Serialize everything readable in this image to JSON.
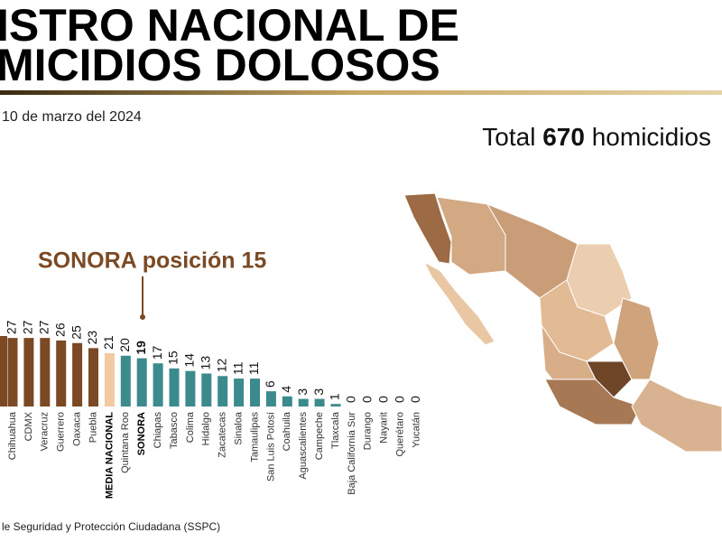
{
  "header": {
    "title_line1": "ISTRO NACIONAL DE",
    "title_line2": "MICIDIOS DOLOSOS",
    "date": "10 de marzo del 2024"
  },
  "total": {
    "prefix": "Total",
    "number": 670,
    "suffix": "homicidios"
  },
  "callout": "SONORA posición 15",
  "source": "le Seguridad y Protección Ciudadana (SSPC)",
  "chart_data": {
    "type": "bar",
    "categories": [
      "Chihuahua",
      "CDMX",
      "Veracruz",
      "Guerrero",
      "Oaxaca",
      "Puebla",
      "MEDIA NACIONAL",
      "Quintana Roo",
      "SONORA",
      "Chiapas",
      "Tabasco",
      "Colima",
      "Hidalgo",
      "Zacatecas",
      "Sinaloa",
      "Tamaulipas",
      "San Luis Potosí",
      "Coahuila",
      "Aguascalientes",
      "Campeche",
      "Tlaxcala",
      "Baja California Sur",
      "Durango",
      "Nayarit",
      "Querétaro",
      "Yucatán"
    ],
    "values": [
      27,
      27,
      27,
      26,
      25,
      23,
      21,
      20,
      19,
      17,
      15,
      14,
      13,
      12,
      11,
      11,
      6,
      4,
      3,
      3,
      1,
      0,
      0,
      0,
      0,
      0
    ],
    "colors": [
      "#7b4a24",
      "#7b4a24",
      "#7b4a24",
      "#7b4a24",
      "#7b4a24",
      "#7b4a24",
      "#f3c9a1",
      "#3c8b8c",
      "#3c8b8c",
      "#3c8b8c",
      "#3c8b8c",
      "#3c8b8c",
      "#3c8b8c",
      "#3c8b8c",
      "#3c8b8c",
      "#3c8b8c",
      "#3c8b8c",
      "#3c8b8c",
      "#3c8b8c",
      "#3c8b8c",
      "#3c8b8c",
      "#3c8b8c",
      "#3c8b8c",
      "#3c8b8c",
      "#3c8b8c",
      "#3c8b8c"
    ],
    "bold": [
      6,
      8
    ]
  }
}
